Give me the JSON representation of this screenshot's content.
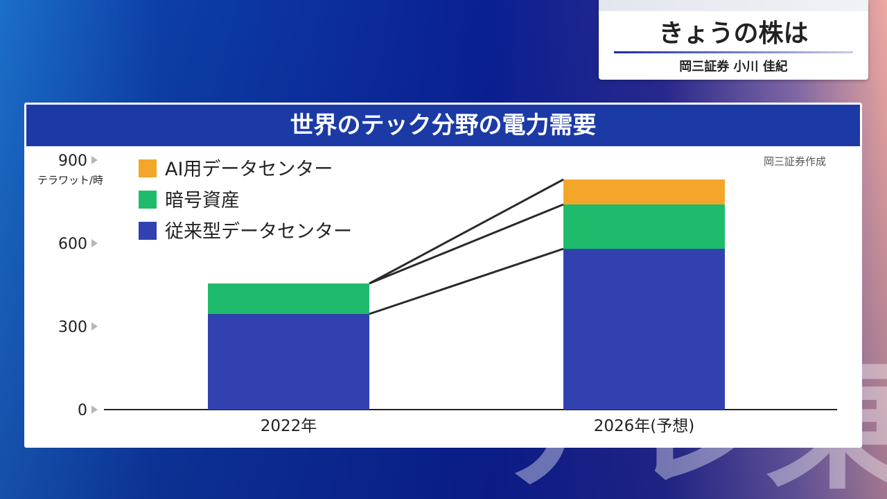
{
  "header": {
    "title": "きょうの株は",
    "subtitle": "岡三証券 小川 佳紀"
  },
  "watermark": "テレ東",
  "panel": {
    "title": "世界のテック分野の電力需要",
    "source": "岡三証券作成"
  },
  "colors": {
    "ai": "#f4a62a",
    "crypto": "#1fbb6c",
    "traditional": "#3241b0",
    "panel_head": "#1b3aa5"
  },
  "chart_data": {
    "type": "bar",
    "stacked": true,
    "categories": [
      "2022年",
      "2026年(予想)"
    ],
    "series": [
      {
        "name": "従来型データセンター",
        "values": [
          345,
          580
        ]
      },
      {
        "name": "暗号資産",
        "values": [
          110,
          160
        ]
      },
      {
        "name": "AI用データセンター",
        "values": [
          0,
          90
        ]
      }
    ],
    "legend": [
      "AI用データセンター",
      "暗号資産",
      "従来型データセンター"
    ],
    "ylabel": "テラワット/時",
    "yticks": [
      0,
      300,
      600,
      900
    ],
    "ylim": [
      0,
      900
    ],
    "connector_lines": true,
    "legend_position": "top-left"
  }
}
